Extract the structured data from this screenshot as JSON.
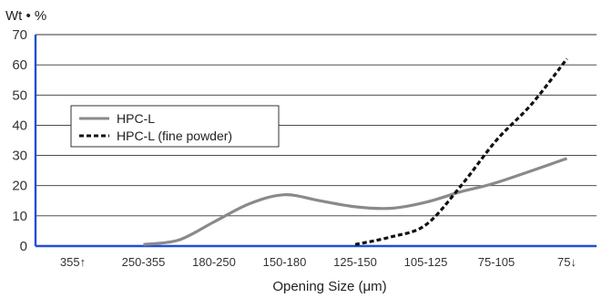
{
  "chart_data": {
    "type": "line",
    "title": "",
    "ylabel": "Wt • %",
    "xlabel": "Opening Size (μm)",
    "categories": [
      "355↑",
      "250-355",
      "180-250",
      "150-180",
      "125-150",
      "105-125",
      "75-105",
      "75↓"
    ],
    "ylim": [
      0,
      70
    ],
    "yticks": [
      0,
      10,
      20,
      30,
      40,
      50,
      60,
      70
    ],
    "grid": true,
    "legend_position": "left",
    "series": [
      {
        "name": "HPC-L",
        "style": "solid",
        "color": "#8a8a8a",
        "points": [
          [
            1,
            0.5
          ],
          [
            1.5,
            2
          ],
          [
            2,
            8
          ],
          [
            2.5,
            14
          ],
          [
            3,
            17
          ],
          [
            3.5,
            15
          ],
          [
            4,
            13
          ],
          [
            4.5,
            12.5
          ],
          [
            5,
            14.5
          ],
          [
            5.5,
            18
          ],
          [
            6,
            21
          ],
          [
            7,
            29
          ]
        ]
      },
      {
        "name": "HPC-L (fine powder)",
        "style": "dashed",
        "color": "#111111",
        "points": [
          [
            4,
            0.5
          ],
          [
            4.5,
            3
          ],
          [
            5,
            7
          ],
          [
            5.5,
            20
          ],
          [
            6,
            35
          ],
          [
            6.5,
            47
          ],
          [
            7,
            62
          ]
        ]
      }
    ]
  }
}
